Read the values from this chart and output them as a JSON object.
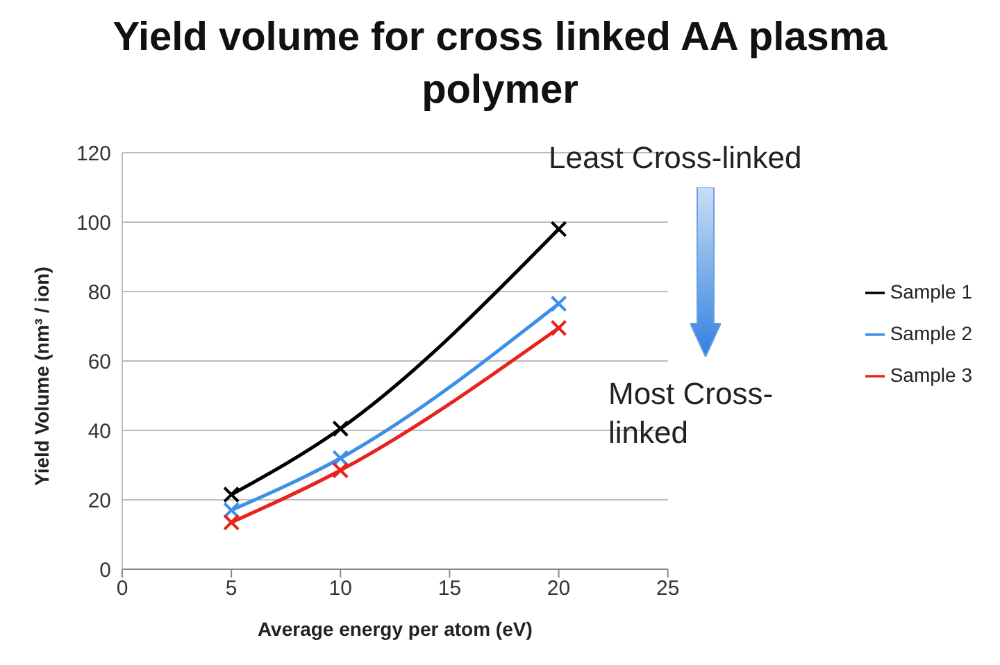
{
  "chart_data": {
    "type": "line",
    "title": "Yield volume for cross linked AA plasma polymer",
    "xlabel": "Average energy per atom (eV)",
    "ylabel": "Yield Volume (nm³ / ion)",
    "x": [
      5,
      10,
      20
    ],
    "series": [
      {
        "name": "Sample 1",
        "color": "#000000",
        "values": [
          21.5,
          40.5,
          98
        ]
      },
      {
        "name": "Sample 2",
        "color": "#3d8fe8",
        "values": [
          17,
          32,
          76.5
        ]
      },
      {
        "name": "Sample 3",
        "color": "#e8231e",
        "values": [
          13.5,
          28.5,
          69.5
        ]
      }
    ],
    "xlim": [
      0,
      25
    ],
    "xticks": [
      0,
      5,
      10,
      15,
      20,
      25
    ],
    "ylim": [
      0,
      120
    ],
    "yticks": [
      0,
      20,
      40,
      60,
      80,
      100,
      120
    ],
    "grid": "y",
    "legend": "right",
    "marker": "cross",
    "line_style": "solid",
    "annotations": [
      "Least Cross-linked",
      "Most Cross-linked"
    ]
  }
}
